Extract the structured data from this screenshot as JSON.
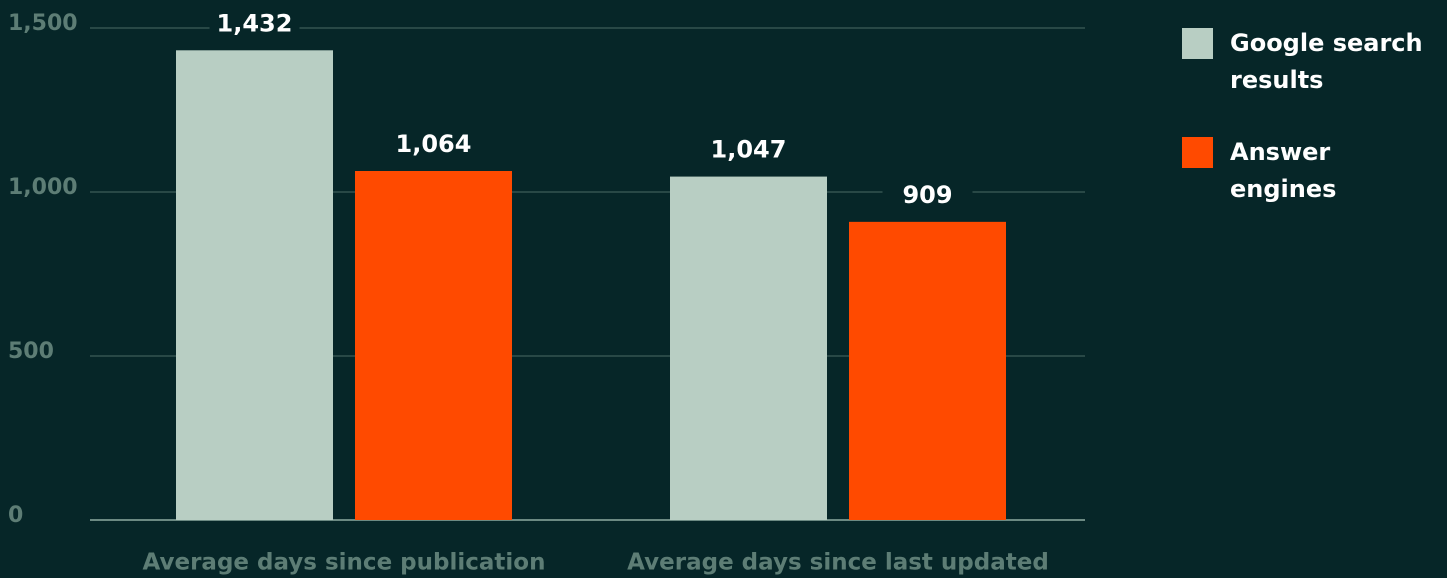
{
  "chart_data": {
    "type": "bar",
    "categories": [
      "Average days since publication",
      "Average days since last updated"
    ],
    "series": [
      {
        "name": "Google search results",
        "color": "#b8cec3",
        "values": [
          1432,
          1047
        ],
        "value_labels": [
          "1,432",
          "1,047"
        ]
      },
      {
        "name": "Answer engines",
        "color": "#ff4a00",
        "values": [
          1064,
          909
        ],
        "value_labels": [
          "1,064",
          "909"
        ]
      }
    ],
    "ylim": [
      0,
      1500
    ],
    "yticks": [
      0,
      500,
      {
        "value": 1000,
        "label": "1,000"
      },
      {
        "value": 1500,
        "label": "1,500"
      }
    ],
    "grid": true,
    "legend": "right"
  }
}
